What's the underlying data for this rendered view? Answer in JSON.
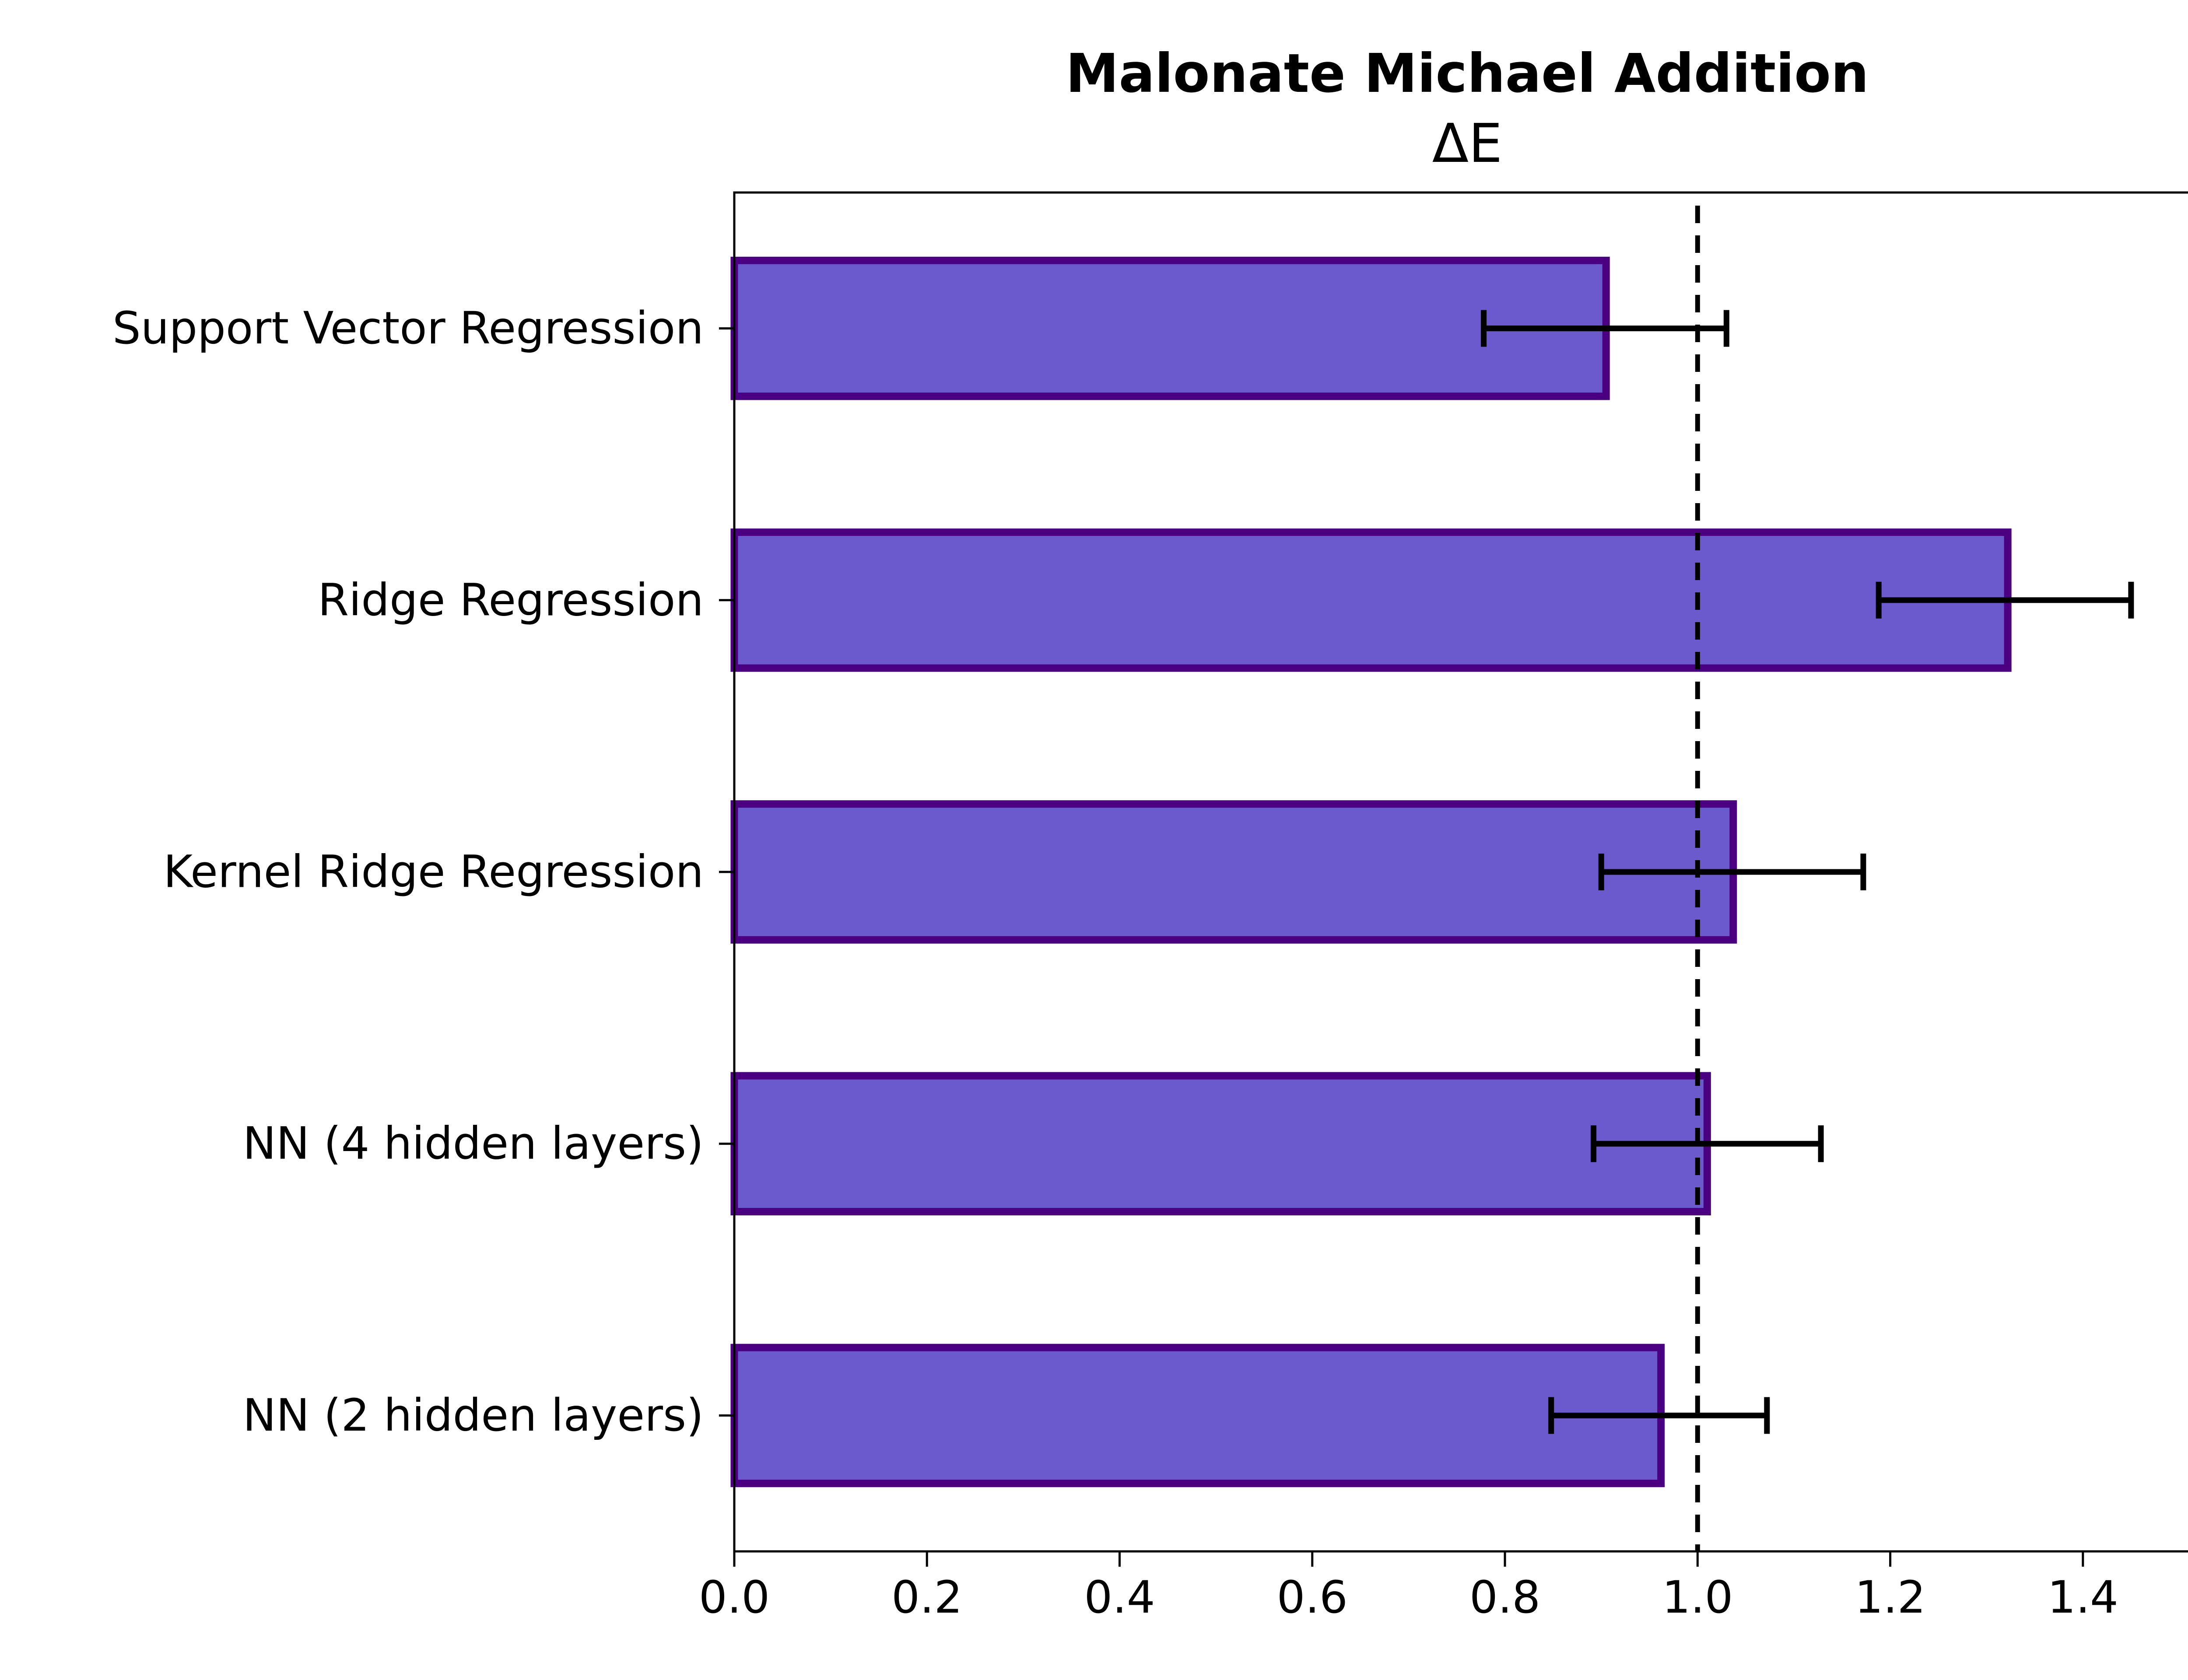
{
  "chart_data": {
    "type": "bar",
    "orientation": "horizontal",
    "title": "Malonate Michael Addition",
    "subtitle": "ΔE",
    "xlabel": "",
    "ylabel": "",
    "categories": [
      "Support Vector Regression",
      "Ridge Regression",
      "Kernel Ridge Regression",
      "NN (4 hidden layers)",
      "NN (2 hidden layers)"
    ],
    "values": [
      0.905,
      1.322,
      1.037,
      1.01,
      0.962
    ],
    "error_low": [
      0.778,
      1.188,
      0.9,
      0.892,
      0.848
    ],
    "error_high": [
      1.03,
      1.45,
      1.172,
      1.128,
      1.072
    ],
    "reference_line": 1.0,
    "xlim": [
      0.0,
      1.52
    ],
    "xticks": [
      "0.0",
      "0.2",
      "0.4",
      "0.6",
      "0.8",
      "1.0",
      "1.2",
      "1.4"
    ],
    "xtick_values": [
      0.0,
      0.2,
      0.4,
      0.6,
      0.8,
      1.0,
      1.2,
      1.4
    ],
    "grid": false,
    "colors": {
      "bar_fill": "#6a5acd",
      "bar_edge": "#4b0082",
      "error_bar": "#000000",
      "reference_line": "#000000",
      "axis": "#000000"
    }
  }
}
